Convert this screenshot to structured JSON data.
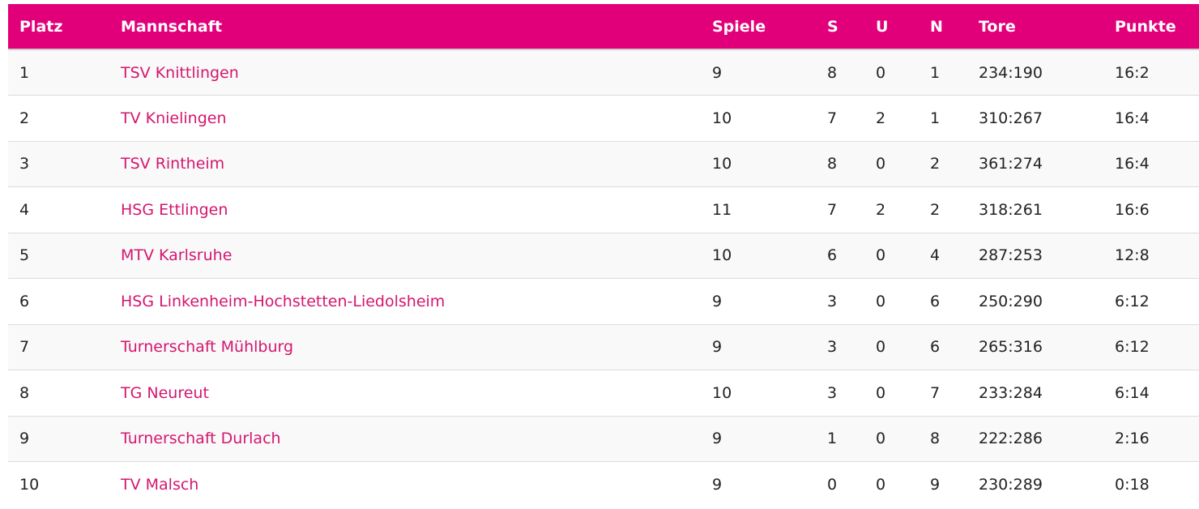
{
  "table": {
    "headers": {
      "platz": "Platz",
      "mannschaft": "Mannschaft",
      "spiele": "Spiele",
      "s": "S",
      "u": "U",
      "n": "N",
      "tore": "Tore",
      "punkte": "Punkte"
    },
    "rows": [
      {
        "platz": "1",
        "team": "TSV Knittlingen",
        "spiele": "9",
        "s": "8",
        "u": "0",
        "n": "1",
        "tore": "234:190",
        "punkte": "16:2"
      },
      {
        "platz": "2",
        "team": "TV Knielingen",
        "spiele": "10",
        "s": "7",
        "u": "2",
        "n": "1",
        "tore": "310:267",
        "punkte": "16:4"
      },
      {
        "platz": "3",
        "team": "TSV Rintheim",
        "spiele": "10",
        "s": "8",
        "u": "0",
        "n": "2",
        "tore": "361:274",
        "punkte": "16:4"
      },
      {
        "platz": "4",
        "team": "HSG Ettlingen",
        "spiele": "11",
        "s": "7",
        "u": "2",
        "n": "2",
        "tore": "318:261",
        "punkte": "16:6"
      },
      {
        "platz": "5",
        "team": "MTV Karlsruhe",
        "spiele": "10",
        "s": "6",
        "u": "0",
        "n": "4",
        "tore": "287:253",
        "punkte": "12:8"
      },
      {
        "platz": "6",
        "team": "HSG Linkenheim-Hochstetten-Liedolsheim",
        "spiele": "9",
        "s": "3",
        "u": "0",
        "n": "6",
        "tore": "250:290",
        "punkte": "6:12"
      },
      {
        "platz": "7",
        "team": "Turnerschaft Mühlburg",
        "spiele": "9",
        "s": "3",
        "u": "0",
        "n": "6",
        "tore": "265:316",
        "punkte": "6:12"
      },
      {
        "platz": "8",
        "team": "TG Neureut",
        "spiele": "10",
        "s": "3",
        "u": "0",
        "n": "7",
        "tore": "233:284",
        "punkte": "6:14"
      },
      {
        "platz": "9",
        "team": "Turnerschaft Durlach",
        "spiele": "9",
        "s": "1",
        "u": "0",
        "n": "8",
        "tore": "222:286",
        "punkte": "2:16"
      },
      {
        "platz": "10",
        "team": "TV Malsch",
        "spiele": "9",
        "s": "0",
        "u": "0",
        "n": "9",
        "tore": "230:289",
        "punkte": "0:18"
      }
    ]
  },
  "colors": {
    "header_bg": "#e2007a",
    "link": "#d4166f"
  }
}
